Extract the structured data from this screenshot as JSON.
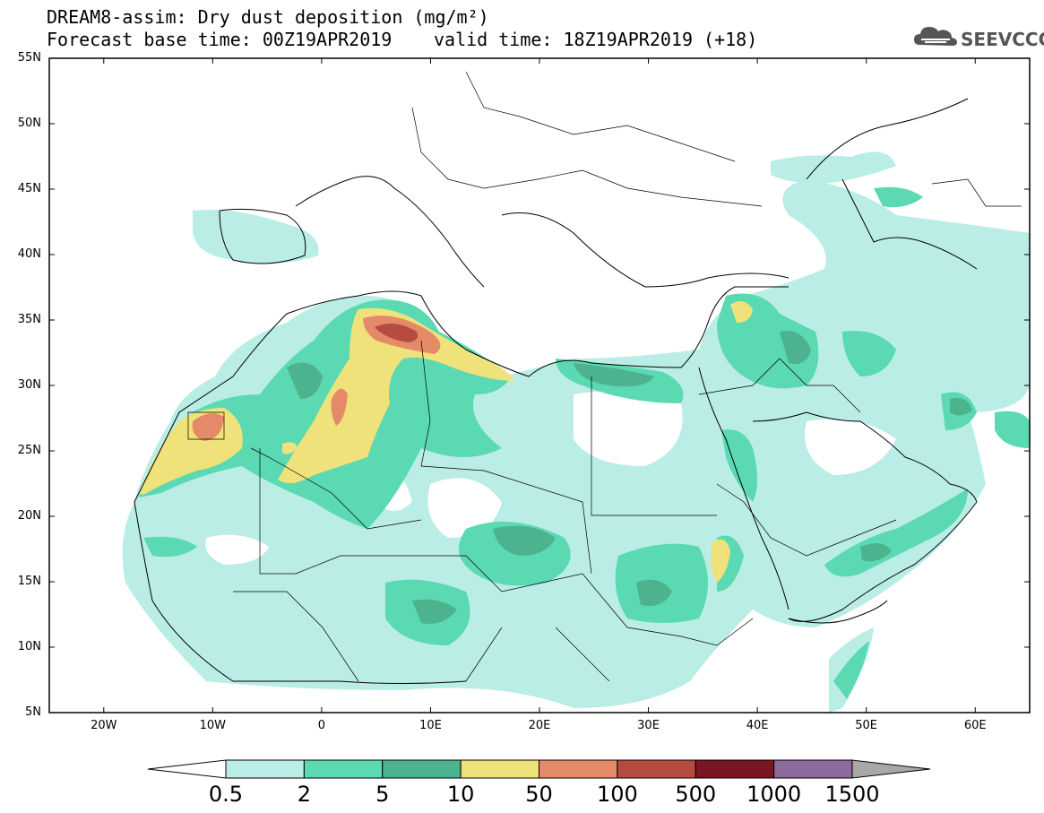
{
  "title": {
    "line1": "DREAM8-assim: Dry dust deposition (mg/m²)",
    "line2": "Forecast base time: 00Z19APR2019",
    "line3": "valid time: 18Z19APR2019 (+18)"
  },
  "logo": {
    "text": "SEEVCCC",
    "icon": "cloud-icon"
  },
  "axes": {
    "lat_labels": [
      "55N",
      "50N",
      "45N",
      "40N",
      "35N",
      "30N",
      "25N",
      "20N",
      "15N",
      "10N",
      "5N"
    ],
    "lon_labels": [
      "20W",
      "10W",
      "0",
      "10E",
      "20E",
      "30E",
      "40E",
      "50E",
      "60E"
    ],
    "lat_range": [
      5,
      55
    ],
    "lon_range": [
      -25,
      65
    ]
  },
  "colorbar": {
    "labels": [
      "0.5",
      "2",
      "5",
      "10",
      "50",
      "100",
      "500",
      "1000",
      "1500"
    ],
    "colors": [
      "#b9ede6",
      "#5ad9b3",
      "#4db38f",
      "#f0e27a",
      "#e58a68",
      "#b54c3f",
      "#7a1524",
      "#8b6a9c"
    ],
    "under_color": "#ffffff",
    "over_color": "#a8a8a8"
  },
  "colors": {
    "level1": "#b9ede6",
    "level2": "#5ad9b3",
    "level3": "#4db38f",
    "level4": "#f0e27a",
    "level5": "#e58a68",
    "level6": "#b54c3f"
  }
}
